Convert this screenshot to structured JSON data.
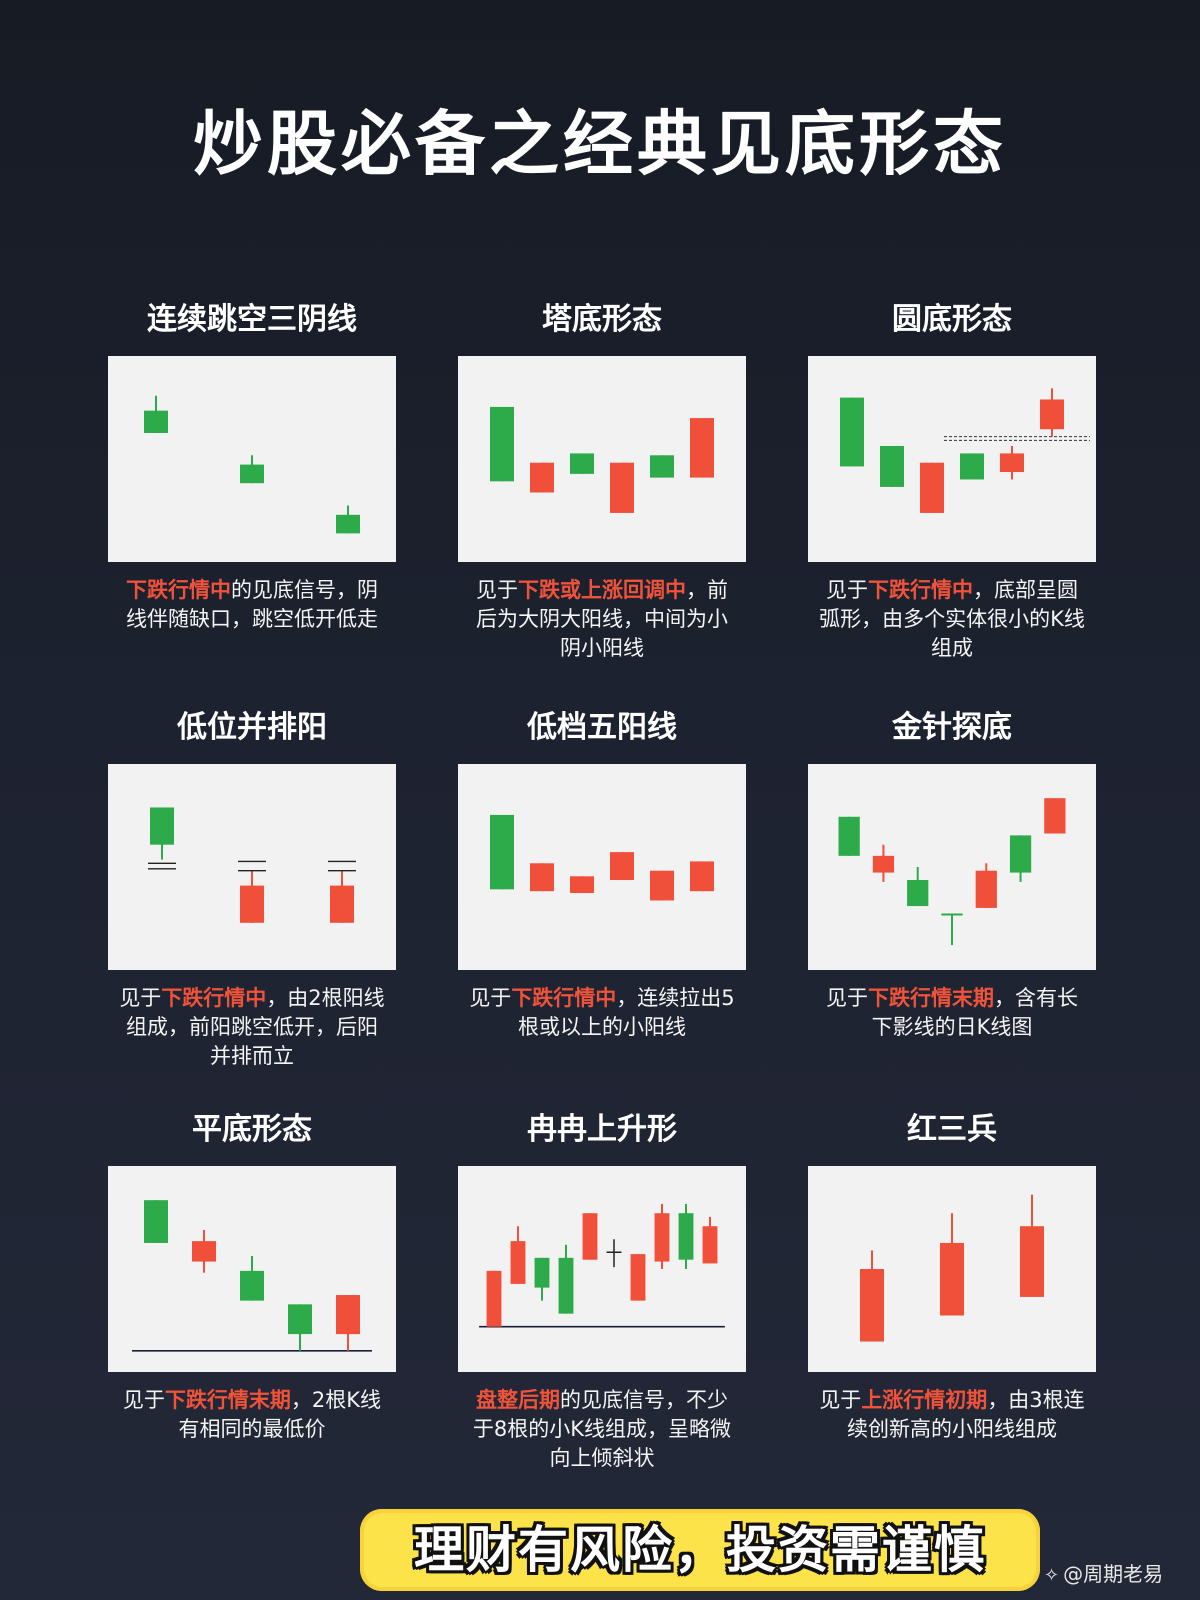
{
  "page": {
    "title": "炒股必备之经典见底形态",
    "banner": "理财有风险，投资需谨慎",
    "watermark": "@周期老易",
    "colors": {
      "up": "#f0503a",
      "down": "#2daa4a",
      "panel": "#f3f2f2",
      "highlight": "#f0523a"
    }
  },
  "chart_data": [
    {
      "type": "candlestick",
      "title": "连续跳空三阴线",
      "desc_parts": [
        {
          "text": "下跌行情中",
          "hl": true
        },
        {
          "text": "的见底信号，阴线伴随缺口，跳空低开低走",
          "hl": false
        }
      ],
      "candles": [
        {
          "x": 1,
          "o": 64,
          "c": 76,
          "h": 84,
          "l": 64,
          "color": "down"
        },
        {
          "x": 3,
          "o": 37,
          "c": 47,
          "h": 52,
          "l": 37,
          "color": "down"
        },
        {
          "x": 5,
          "o": 10,
          "c": 20,
          "h": 25,
          "l": 10,
          "color": "down"
        }
      ]
    },
    {
      "type": "candlestick",
      "title": "塔底形态",
      "desc_parts": [
        {
          "text": "见于",
          "hl": false
        },
        {
          "text": "下跌或上涨回调中",
          "hl": true
        },
        {
          "text": "，前后为大阴大阳线，中间为小阴小阳线",
          "hl": false
        }
      ],
      "candles": [
        {
          "x": 1,
          "o": 38,
          "c": 78,
          "h": 78,
          "l": 38,
          "color": "down"
        },
        {
          "x": 2,
          "o": 32,
          "c": 48,
          "h": 48,
          "l": 32,
          "color": "up"
        },
        {
          "x": 3,
          "o": 42,
          "c": 53,
          "h": 53,
          "l": 42,
          "color": "down"
        },
        {
          "x": 4,
          "o": 21,
          "c": 48,
          "h": 48,
          "l": 21,
          "color": "up"
        },
        {
          "x": 5,
          "o": 40,
          "c": 52,
          "h": 52,
          "l": 40,
          "color": "down"
        },
        {
          "x": 6,
          "o": 40,
          "c": 72,
          "h": 72,
          "l": 40,
          "color": "up"
        }
      ]
    },
    {
      "type": "candlestick",
      "title": "圆底形态",
      "desc_parts": [
        {
          "text": "见于",
          "hl": false
        },
        {
          "text": "下跌行情中",
          "hl": true
        },
        {
          "text": "，底部呈圆弧形，由多个实体很小的K线组成",
          "hl": false
        }
      ],
      "candles": [
        {
          "x": 1,
          "o": 46,
          "c": 83,
          "h": 83,
          "l": 46,
          "color": "down"
        },
        {
          "x": 2,
          "o": 35,
          "c": 57,
          "h": 57,
          "l": 35,
          "color": "down"
        },
        {
          "x": 3,
          "o": 21,
          "c": 48,
          "h": 48,
          "l": 21,
          "color": "up"
        },
        {
          "x": 4,
          "o": 39,
          "c": 53,
          "h": 53,
          "l": 39,
          "color": "down"
        },
        {
          "x": 5,
          "o": 43,
          "c": 53,
          "h": 57,
          "l": 39,
          "color": "up"
        },
        {
          "x": 6,
          "o": 66,
          "c": 82,
          "h": 88,
          "l": 62,
          "color": "up"
        }
      ],
      "dashed_levels": [
        60,
        62
      ]
    },
    {
      "type": "candlestick",
      "title": "低位并排阳",
      "desc_parts": [
        {
          "text": "见于",
          "hl": false
        },
        {
          "text": "下跌行情中",
          "hl": true
        },
        {
          "text": "，由2根阳线组成，前阳跳空低开，后阳并排而立",
          "hl": false
        }
      ],
      "candles": [
        {
          "x": 2,
          "o": 62,
          "c": 82,
          "h": 82,
          "l": 54,
          "color": "down",
          "ticks": [
            52,
            49
          ]
        },
        {
          "x": 3.5,
          "o": 20,
          "c": 40,
          "h": 48,
          "l": 20,
          "color": "up",
          "ticks": [
            53,
            48
          ]
        },
        {
          "x": 5,
          "o": 20,
          "c": 40,
          "h": 48,
          "l": 20,
          "color": "up",
          "ticks": [
            53,
            48
          ]
        }
      ]
    },
    {
      "type": "candlestick",
      "title": "低档五阳线",
      "desc_parts": [
        {
          "text": "见于",
          "hl": false
        },
        {
          "text": "下跌行情中",
          "hl": true
        },
        {
          "text": "，连续拉出5根或以上的小阳线",
          "hl": false
        }
      ],
      "candles": [
        {
          "x": 1,
          "o": 38,
          "c": 78,
          "h": 78,
          "l": 38,
          "color": "down"
        },
        {
          "x": 2,
          "o": 37,
          "c": 52,
          "h": 52,
          "l": 37,
          "color": "up"
        },
        {
          "x": 3,
          "o": 36,
          "c": 45,
          "h": 45,
          "l": 36,
          "color": "up"
        },
        {
          "x": 4,
          "o": 43,
          "c": 58,
          "h": 58,
          "l": 43,
          "color": "up"
        },
        {
          "x": 5,
          "o": 32,
          "c": 48,
          "h": 48,
          "l": 32,
          "color": "up"
        },
        {
          "x": 6,
          "o": 37,
          "c": 53,
          "h": 53,
          "l": 37,
          "color": "up"
        }
      ]
    },
    {
      "type": "candlestick",
      "title": "金针探底",
      "desc_parts": [
        {
          "text": "见于",
          "hl": false
        },
        {
          "text": "下跌行情末期",
          "hl": true
        },
        {
          "text": "，含有长下影线的日K线图",
          "hl": false
        }
      ],
      "candles": [
        {
          "x": 1,
          "o": 56,
          "c": 77,
          "h": 77,
          "l": 56,
          "color": "down"
        },
        {
          "x": 2,
          "o": 47,
          "c": 56,
          "h": 62,
          "l": 42,
          "color": "up"
        },
        {
          "x": 3,
          "o": 29,
          "c": 43,
          "h": 50,
          "l": 29,
          "color": "down"
        },
        {
          "x": 4,
          "o": 24,
          "c": 25,
          "h": 25,
          "l": 8,
          "color": "down"
        },
        {
          "x": 5,
          "o": 28,
          "c": 48,
          "h": 52,
          "l": 28,
          "color": "up"
        },
        {
          "x": 6,
          "o": 47,
          "c": 67,
          "h": 67,
          "l": 42,
          "color": "down"
        },
        {
          "x": 7,
          "o": 68,
          "c": 87,
          "h": 87,
          "l": 68,
          "color": "up"
        }
      ]
    },
    {
      "type": "candlestick",
      "title": "平底形态",
      "desc_parts": [
        {
          "text": "见于",
          "hl": false
        },
        {
          "text": "下跌行情末期",
          "hl": true
        },
        {
          "text": "，2根K线有相同的最低价",
          "hl": false
        }
      ],
      "candles": [
        {
          "x": 1,
          "o": 64,
          "c": 87,
          "h": 87,
          "l": 64,
          "color": "down"
        },
        {
          "x": 2,
          "o": 54,
          "c": 65,
          "h": 71,
          "l": 48,
          "color": "up"
        },
        {
          "x": 3,
          "o": 33,
          "c": 49,
          "h": 57,
          "l": 33,
          "color": "down"
        },
        {
          "x": 4,
          "o": 15,
          "c": 31,
          "h": 31,
          "l": 6,
          "color": "down"
        },
        {
          "x": 5,
          "o": 15,
          "c": 36,
          "h": 36,
          "l": 6,
          "color": "up"
        }
      ],
      "support_line": 6
    },
    {
      "type": "candlestick",
      "title": "冉冉上升形",
      "desc_parts": [
        {
          "text": "盘整后期",
          "hl": true
        },
        {
          "text": "的见底信号，不少于8根的小K线组成，呈略微向上倾斜状",
          "hl": false
        }
      ],
      "candles": [
        {
          "x": 1,
          "o": 19,
          "c": 49,
          "h": 49,
          "l": 19,
          "color": "up"
        },
        {
          "x": 2,
          "o": 42,
          "c": 65,
          "h": 73,
          "l": 42,
          "color": "up"
        },
        {
          "x": 3,
          "o": 40,
          "c": 56,
          "h": 56,
          "l": 33,
          "color": "down"
        },
        {
          "x": 4,
          "o": 26,
          "c": 56,
          "h": 63,
          "l": 26,
          "color": "down"
        },
        {
          "x": 5,
          "o": 55,
          "c": 80,
          "h": 80,
          "l": 55,
          "color": "up"
        },
        {
          "x": 6,
          "o": 59,
          "c": 59,
          "h": 66,
          "l": 51,
          "color": "cross"
        },
        {
          "x": 7,
          "o": 33,
          "c": 58,
          "h": 58,
          "l": 33,
          "color": "up"
        },
        {
          "x": 8,
          "o": 54,
          "c": 80,
          "h": 85,
          "l": 50,
          "color": "up"
        },
        {
          "x": 9,
          "o": 55,
          "c": 80,
          "h": 85,
          "l": 50,
          "color": "down"
        },
        {
          "x": 10,
          "o": 53,
          "c": 73,
          "h": 78,
          "l": 53,
          "color": "up"
        }
      ],
      "support_line": 19
    },
    {
      "type": "candlestick",
      "title": "红三兵",
      "desc_parts": [
        {
          "text": "见于",
          "hl": false
        },
        {
          "text": "上涨行情初期",
          "hl": true
        },
        {
          "text": "，由3根连续创新高的小阳线组成",
          "hl": false
        }
      ],
      "candles": [
        {
          "x": 1,
          "o": 11,
          "c": 50,
          "h": 60,
          "l": 11,
          "color": "up"
        },
        {
          "x": 2,
          "o": 25,
          "c": 64,
          "h": 80,
          "l": 25,
          "color": "up"
        },
        {
          "x": 3,
          "o": 35,
          "c": 73,
          "h": 90,
          "l": 35,
          "color": "up"
        }
      ]
    }
  ]
}
